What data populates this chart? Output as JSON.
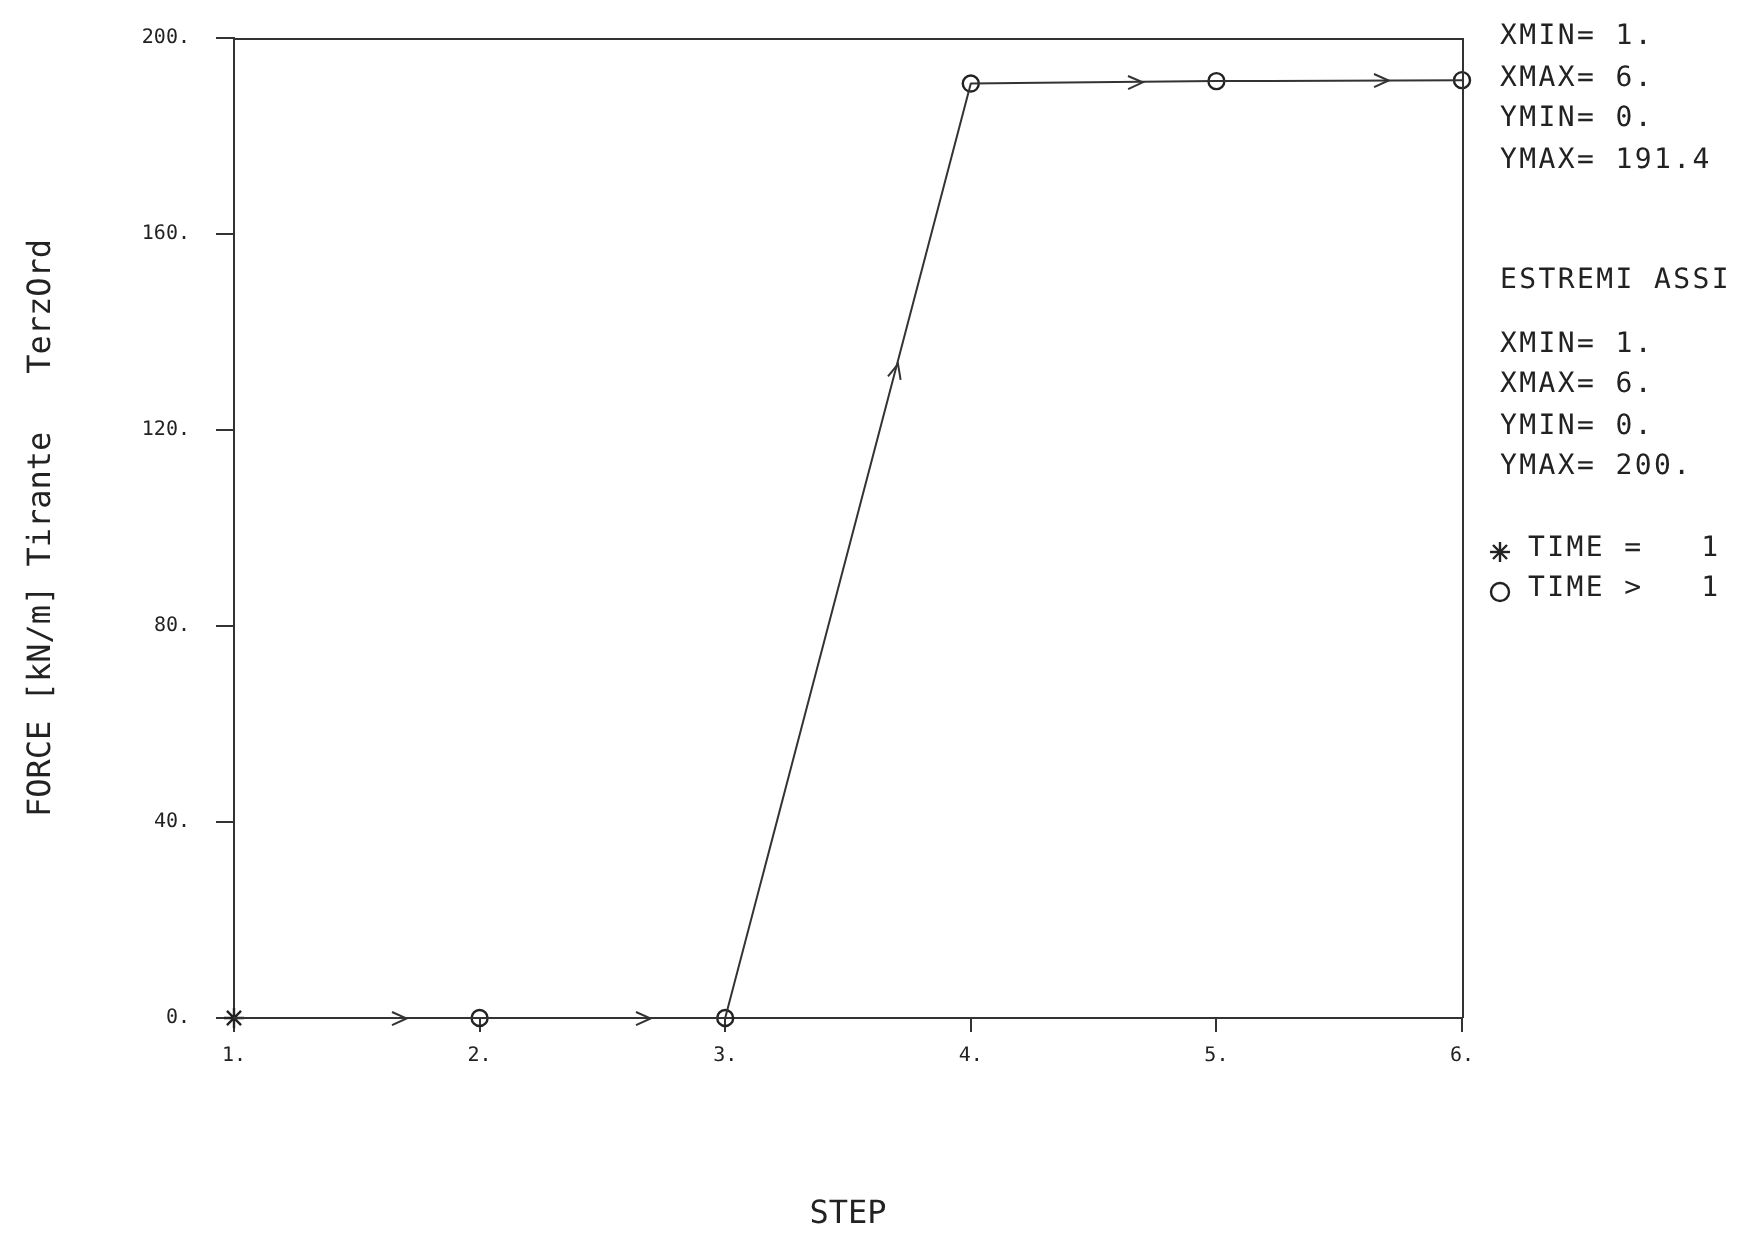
{
  "chart_data": {
    "type": "line",
    "xlabel": "STEP",
    "ylabel": "FORCE [kN/m] Tirante   TerzOrd",
    "xlim": [
      1,
      6
    ],
    "xticks": [
      {
        "value": 1,
        "label": "1."
      },
      {
        "value": 2,
        "label": "2."
      },
      {
        "value": 3,
        "label": "3."
      },
      {
        "value": 4,
        "label": "4."
      },
      {
        "value": 5,
        "label": "5."
      },
      {
        "value": 6,
        "label": "6."
      }
    ],
    "ylim": [
      0,
      200
    ],
    "yticks": [
      {
        "value": 0,
        "label": "0."
      },
      {
        "value": 40,
        "label": "40."
      },
      {
        "value": 80,
        "label": "80."
      },
      {
        "value": 120,
        "label": "120."
      },
      {
        "value": 160,
        "label": "160."
      },
      {
        "value": 200,
        "label": "200."
      }
    ],
    "legend": "right",
    "series": [
      {
        "type": "line",
        "color": "#333333",
        "x": [
          1,
          2,
          3,
          4,
          5,
          6
        ],
        "values": [
          0,
          0,
          0,
          190.7,
          191.2,
          191.4
        ],
        "marker": "none"
      },
      {
        "type": "scatter",
        "name": "TIME =   1",
        "color": "#222222",
        "x": [
          1
        ],
        "values": [
          0
        ],
        "marker": "cross"
      },
      {
        "type": "scatter",
        "name": "TIME >   1",
        "color": "#222222",
        "x": [
          2,
          3,
          4,
          5,
          6
        ],
        "values": [
          0,
          0,
          190.7,
          191.2,
          191.4
        ],
        "marker": "circle"
      }
    ],
    "annotations": [
      "XMIN= 1.",
      "XMAX= 6.",
      "YMIN= 0.",
      "YMAX= 191.4",
      "ESTREMI ASSI",
      "XMIN= 1.",
      "XMAX= 6.",
      "YMIN= 0.",
      "YMAX= 200."
    ]
  }
}
